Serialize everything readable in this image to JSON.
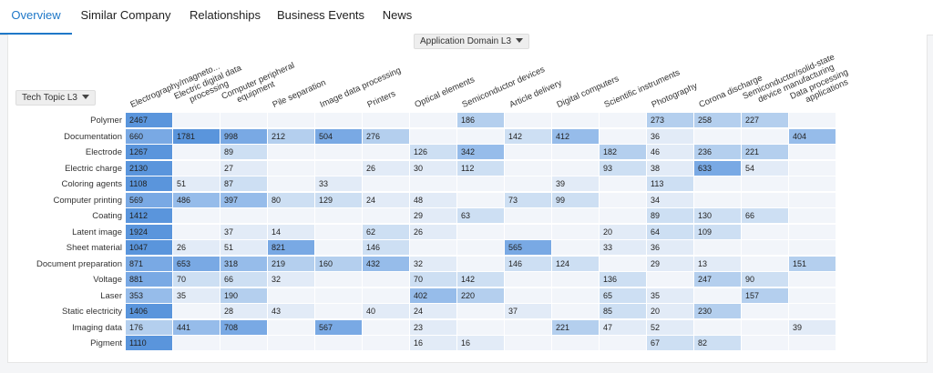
{
  "tabs": [
    {
      "label": "Overview",
      "active": true
    },
    {
      "label": "Similar Company",
      "active": false
    },
    {
      "label": "Relationships",
      "active": false
    },
    {
      "label": "Business Events",
      "active": false
    },
    {
      "label": "News",
      "active": false
    }
  ],
  "column_dropdown": {
    "label": "Application Domain L3"
  },
  "row_dropdown": {
    "label": "Tech Topic L3"
  },
  "colors": {
    "accent": "#1f78c8",
    "cell_empty": "#f2f5fa",
    "cell_light": "#e2ebf7",
    "cell_mid_light": "#cddff3",
    "cell_mid": "#b4cfee",
    "cell_mid_dark": "#96bcea",
    "cell_dark": "#79a9e4",
    "cell_darkest": "#5a95dc"
  },
  "columns": [
    [
      "Electrography/magneto..."
    ],
    [
      "Electric digital data",
      "processing"
    ],
    [
      "Computer peripheral",
      "equipment"
    ],
    [
      "Pile separation"
    ],
    [
      "Image data processing"
    ],
    [
      "Printers"
    ],
    [
      "Optical elements"
    ],
    [
      "Semiconductor devices"
    ],
    [
      "Article delivery"
    ],
    [
      "Digital computers"
    ],
    [
      "Scientific instruments"
    ],
    [
      "Photography"
    ],
    [
      "Corona discharge"
    ],
    [
      "Semiconductor/solid-state",
      "device manufacturing"
    ],
    [
      "Data processing",
      "applications"
    ]
  ],
  "rows": [
    {
      "label": "Polymer",
      "values": [
        2467,
        null,
        null,
        null,
        null,
        null,
        null,
        186,
        null,
        null,
        null,
        273,
        258,
        227,
        null
      ]
    },
    {
      "label": "Documentation",
      "values": [
        660,
        1781,
        998,
        212,
        504,
        276,
        null,
        null,
        142,
        412,
        null,
        36,
        null,
        null,
        404
      ]
    },
    {
      "label": "Electrode",
      "values": [
        1267,
        null,
        89,
        null,
        null,
        null,
        126,
        342,
        null,
        null,
        182,
        46,
        236,
        221,
        null
      ]
    },
    {
      "label": "Electric charge",
      "values": [
        2130,
        null,
        27,
        null,
        null,
        26,
        30,
        112,
        null,
        null,
        93,
        38,
        633,
        54,
        null
      ]
    },
    {
      "label": "Coloring agents",
      "values": [
        1108,
        51,
        87,
        null,
        33,
        null,
        null,
        null,
        null,
        39,
        null,
        113,
        null,
        null,
        null
      ]
    },
    {
      "label": "Computer printing",
      "values": [
        569,
        486,
        397,
        80,
        129,
        24,
        48,
        null,
        73,
        99,
        null,
        34,
        null,
        null,
        null
      ]
    },
    {
      "label": "Coating",
      "values": [
        1412,
        null,
        null,
        null,
        null,
        null,
        29,
        63,
        null,
        null,
        null,
        89,
        130,
        66,
        null
      ]
    },
    {
      "label": "Latent image",
      "values": [
        1924,
        null,
        37,
        14,
        null,
        62,
        26,
        null,
        null,
        null,
        20,
        64,
        109,
        null,
        null
      ]
    },
    {
      "label": "Sheet material",
      "values": [
        1047,
        26,
        51,
        821,
        null,
        146,
        null,
        null,
        565,
        null,
        33,
        36,
        null,
        null,
        null
      ]
    },
    {
      "label": "Document preparation",
      "values": [
        871,
        653,
        318,
        219,
        160,
        432,
        32,
        null,
        146,
        124,
        null,
        29,
        13,
        null,
        151
      ]
    },
    {
      "label": "Voltage",
      "values": [
        881,
        70,
        66,
        32,
        null,
        null,
        70,
        142,
        null,
        null,
        136,
        null,
        247,
        90,
        null
      ]
    },
    {
      "label": "Laser",
      "values": [
        353,
        35,
        190,
        null,
        null,
        null,
        402,
        220,
        null,
        null,
        65,
        35,
        null,
        157,
        null
      ]
    },
    {
      "label": "Static electricity",
      "values": [
        1406,
        null,
        28,
        43,
        null,
        40,
        24,
        null,
        37,
        null,
        85,
        20,
        230,
        null,
        null
      ]
    },
    {
      "label": "Imaging data",
      "values": [
        176,
        441,
        708,
        null,
        567,
        null,
        23,
        null,
        null,
        221,
        47,
        52,
        null,
        null,
        39
      ]
    },
    {
      "label": "Pigment",
      "values": [
        1110,
        null,
        null,
        null,
        null,
        null,
        16,
        16,
        null,
        null,
        null,
        67,
        82,
        null,
        null
      ]
    }
  ]
}
